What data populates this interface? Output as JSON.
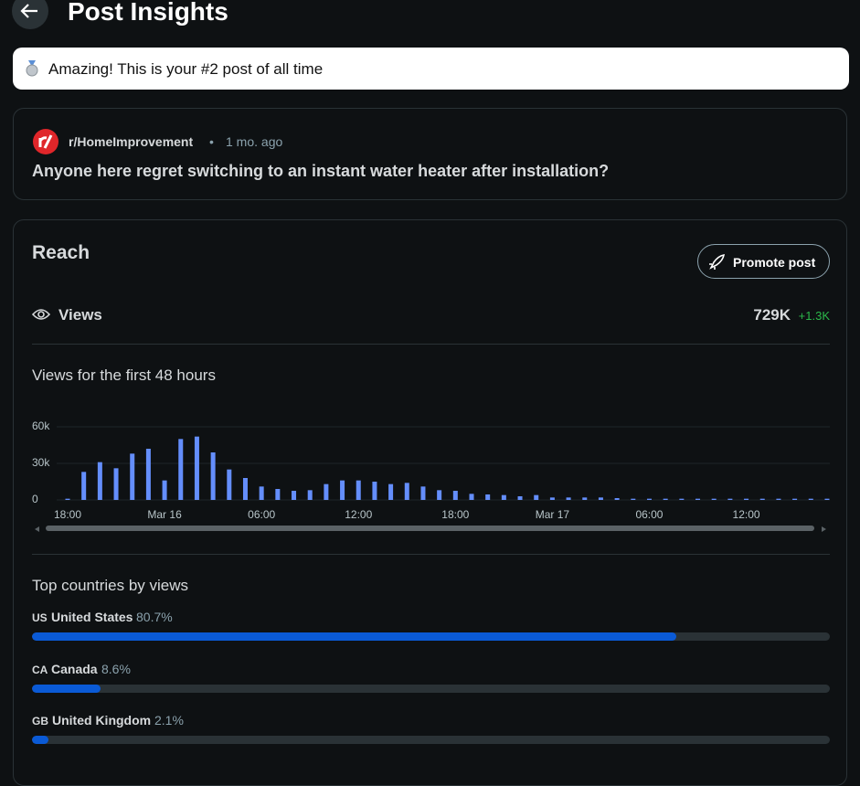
{
  "header": {
    "title": "Post Insights"
  },
  "banner": {
    "text": "Amazing! This is your #2 post of all time"
  },
  "post": {
    "subreddit": "r/HomeImprovement",
    "separator": "•",
    "age": "1 mo. ago",
    "title": "Anyone here regret switching to an instant water heater after installation?"
  },
  "reach": {
    "title": "Reach",
    "button": "Promote post",
    "views_label": "Views",
    "views_total": "729K",
    "views_change": "+1.3K"
  },
  "chart_data": {
    "type": "bar",
    "title": "Views for the first 48 hours",
    "color": "#648efc",
    "grid": true,
    "categories": [
      "18:00",
      null,
      null,
      null,
      null,
      null,
      "Mar 16",
      null,
      null,
      null,
      null,
      null,
      "06:00",
      null,
      null,
      null,
      null,
      null,
      "12:00",
      null,
      null,
      null,
      null,
      null,
      "18:00",
      null,
      null,
      null,
      null,
      null,
      "Mar 17",
      null,
      null,
      null,
      null,
      null,
      "06:00",
      null,
      null,
      null,
      null,
      null,
      "12:00",
      null,
      null,
      null,
      null,
      null
    ],
    "values": [
      1000,
      23000,
      31000,
      26000,
      38000,
      42000,
      16000,
      50000,
      52000,
      39000,
      25000,
      18000,
      11000,
      9000,
      7500,
      8000,
      13000,
      16000,
      16000,
      15000,
      13000,
      14000,
      11000,
      8000,
      7500,
      5000,
      4500,
      4000,
      3000,
      4000,
      2000,
      2000,
      2000,
      2000,
      1500,
      1000,
      1000,
      1000,
      1000,
      1000,
      1000,
      1000,
      1000,
      1000,
      1000,
      1000,
      1000,
      1000
    ],
    "ylim": [
      0,
      60000
    ],
    "yticks": [
      0,
      {
        "value": 30000,
        "label": "30k"
      },
      {
        "value": 60000,
        "label": "60k"
      }
    ]
  },
  "countries": {
    "title": "Top countries by views",
    "rows": [
      {
        "code": "US",
        "name": "United States",
        "percent": {
          "value": 80.7,
          "label": "80.7%"
        }
      },
      {
        "code": "CA",
        "name": "Canada",
        "percent": {
          "value": 8.6,
          "label": "8.6%"
        }
      },
      {
        "code": "GB",
        "name": "United Kingdom",
        "percent": {
          "value": 2.1,
          "label": "2.1%"
        }
      }
    ]
  }
}
